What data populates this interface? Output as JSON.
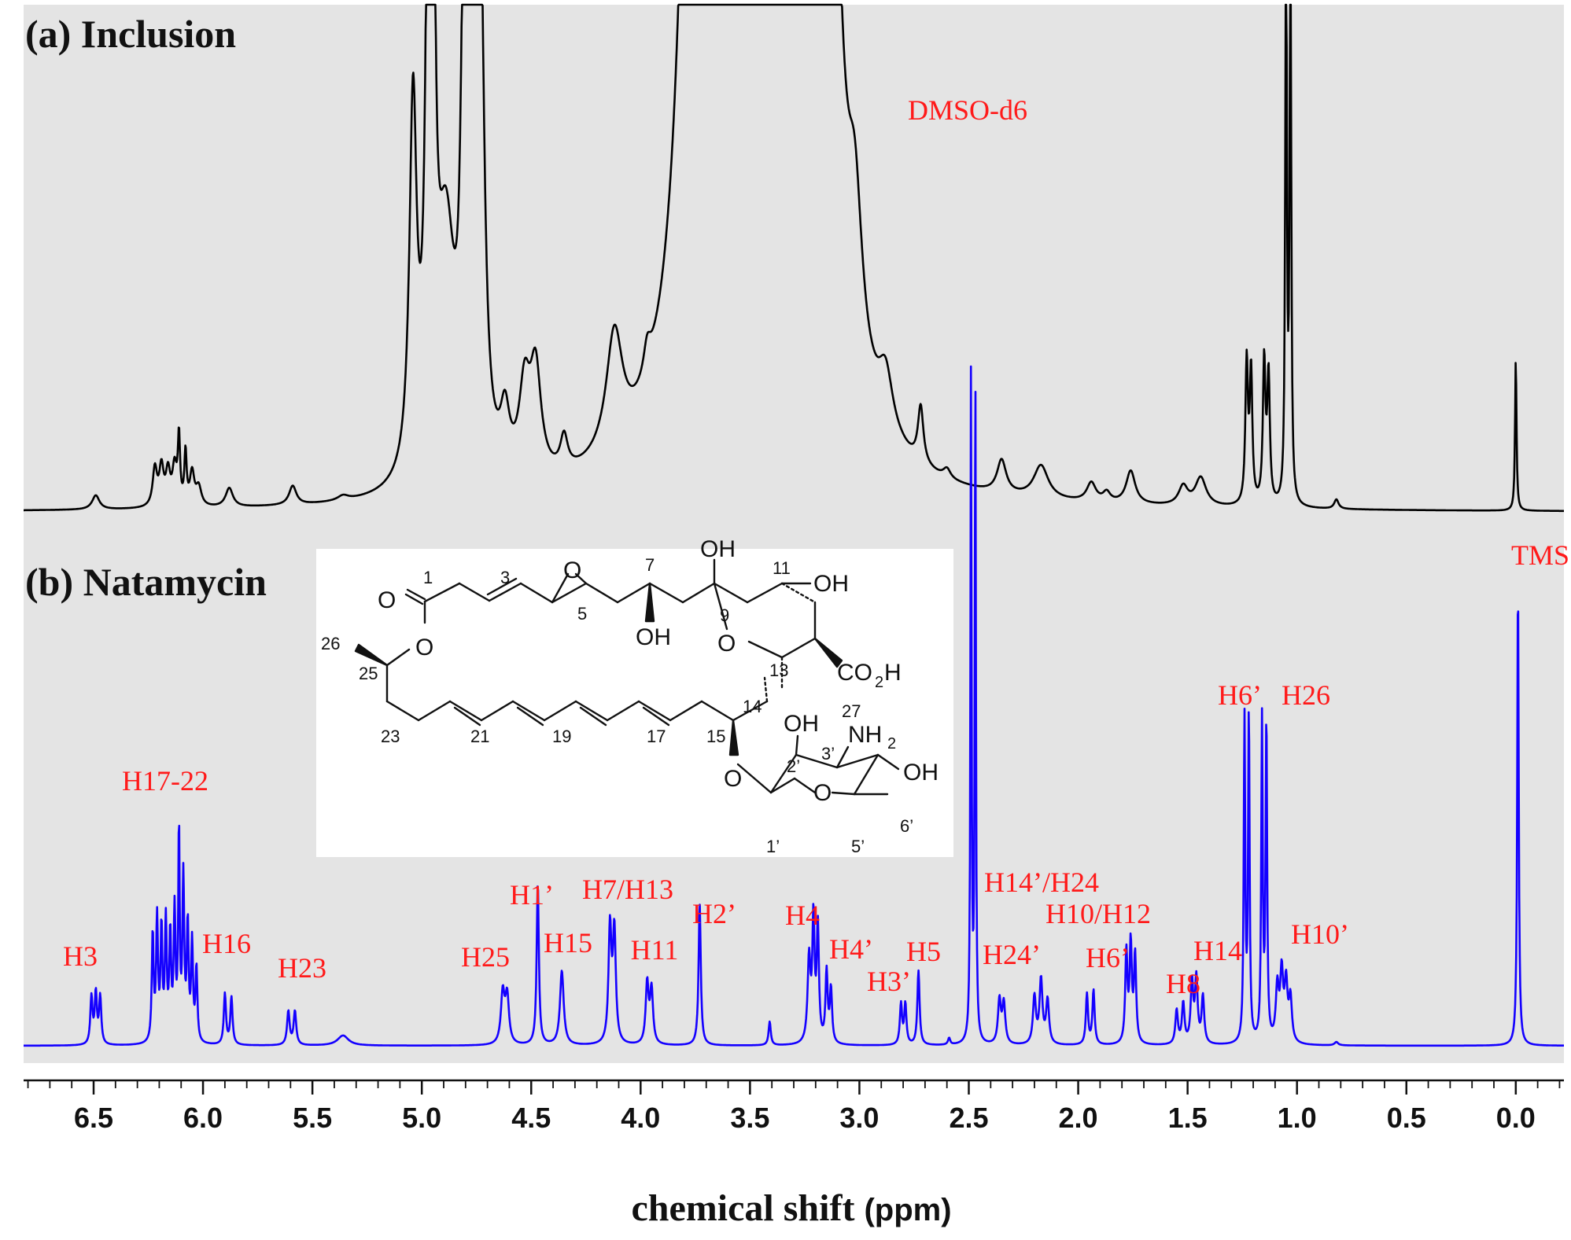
{
  "chart_data": {
    "type": "line",
    "xlabel": "chemical shift",
    "xlabel_unit": "(ppm)",
    "xlim": [
      6.82,
      -0.22
    ],
    "x_reversed": true,
    "xticks": [
      6.5,
      6.0,
      5.5,
      5.0,
      4.5,
      4.0,
      3.5,
      3.0,
      2.5,
      2.0,
      1.5,
      1.0,
      0.5,
      0.0
    ],
    "xtick_labels": [
      "6.5",
      "6.0",
      "5.5",
      "5.0",
      "4.5",
      "4.0",
      "3.5",
      "3.0",
      "2.5",
      "2.0",
      "1.5",
      "1.0",
      "0.5",
      "0.0"
    ],
    "background": "#e4e4e4",
    "series": [
      {
        "name": "(a) Inclusion",
        "color": "#000000",
        "baseline": 0,
        "peaks": [
          {
            "x": 6.49,
            "h": 0.03,
            "w": 0.02
          },
          {
            "x": 6.22,
            "h": 0.08,
            "w": 0.012
          },
          {
            "x": 6.19,
            "h": 0.08,
            "w": 0.012
          },
          {
            "x": 6.16,
            "h": 0.07,
            "w": 0.012
          },
          {
            "x": 6.13,
            "h": 0.08,
            "w": 0.012
          },
          {
            "x": 6.11,
            "h": 0.14,
            "w": 0.006
          },
          {
            "x": 6.08,
            "h": 0.11,
            "w": 0.006
          },
          {
            "x": 6.05,
            "h": 0.07,
            "w": 0.012
          },
          {
            "x": 6.02,
            "h": 0.04,
            "w": 0.015
          },
          {
            "x": 5.88,
            "h": 0.04,
            "w": 0.02
          },
          {
            "x": 5.59,
            "h": 0.04,
            "w": 0.02
          },
          {
            "x": 5.36,
            "h": 0.01,
            "w": 0.03
          },
          {
            "x": 5.04,
            "h": 0.78,
            "w": 0.02
          },
          {
            "x": 4.95,
            "h": 1.15,
            "w": 0.012
          },
          {
            "x": 4.97,
            "h": 1.1,
            "w": 0.015
          },
          {
            "x": 4.89,
            "h": 0.5,
            "w": 0.05
          },
          {
            "x": 4.81,
            "h": 0.72,
            "w": 0.015
          },
          {
            "x": 4.79,
            "h": 0.62,
            "w": 0.015
          },
          {
            "x": 4.76,
            "h": 1.0,
            "w": 0.017
          },
          {
            "x": 4.73,
            "h": 0.88,
            "w": 0.02
          },
          {
            "x": 4.62,
            "h": 0.12,
            "w": 0.025
          },
          {
            "x": 4.53,
            "h": 0.18,
            "w": 0.03
          },
          {
            "x": 4.48,
            "h": 0.22,
            "w": 0.03
          },
          {
            "x": 4.35,
            "h": 0.07,
            "w": 0.02
          },
          {
            "x": 4.12,
            "h": 0.25,
            "w": 0.045
          },
          {
            "x": 3.97,
            "h": 0.06,
            "w": 0.02
          },
          {
            "x": 3.74,
            "h": 2.5,
            "w": 0.06
          },
          {
            "x": 3.57,
            "h": 1.6,
            "w": 0.1
          },
          {
            "x": 3.32,
            "h": 2.5,
            "w": 0.07
          },
          {
            "x": 3.16,
            "h": 2.5,
            "w": 0.05
          },
          {
            "x": 3.02,
            "h": 0.3,
            "w": 0.04
          },
          {
            "x": 2.88,
            "h": 0.12,
            "w": 0.04
          },
          {
            "x": 2.72,
            "h": 0.12,
            "w": 0.015
          },
          {
            "x": 2.6,
            "h": 0.02,
            "w": 0.02
          },
          {
            "x": 2.35,
            "h": 0.07,
            "w": 0.025
          },
          {
            "x": 2.17,
            "h": 0.07,
            "w": 0.04
          },
          {
            "x": 1.94,
            "h": 0.04,
            "w": 0.025
          },
          {
            "x": 1.87,
            "h": 0.02,
            "w": 0.02
          },
          {
            "x": 1.76,
            "h": 0.07,
            "w": 0.025
          },
          {
            "x": 1.52,
            "h": 0.04,
            "w": 0.025
          },
          {
            "x": 1.44,
            "h": 0.06,
            "w": 0.03
          },
          {
            "x": 1.23,
            "h": 0.3,
            "w": 0.007
          },
          {
            "x": 1.21,
            "h": 0.28,
            "w": 0.007
          },
          {
            "x": 1.15,
            "h": 0.3,
            "w": 0.007
          },
          {
            "x": 1.13,
            "h": 0.27,
            "w": 0.007
          },
          {
            "x": 1.05,
            "h": 1.35,
            "w": 0.004
          },
          {
            "x": 1.03,
            "h": 1.35,
            "w": 0.004
          },
          {
            "x": 0.82,
            "h": 0.02,
            "w": 0.012
          },
          {
            "x": 0.0,
            "h": 0.32,
            "w": 0.004
          }
        ],
        "dip": {
          "x": 3.27,
          "depth": 0.55
        }
      },
      {
        "name": "(b) Natamycin",
        "color": "#1400ff",
        "baseline": 0,
        "peaks": [
          {
            "x": 6.51,
            "h": 0.14,
            "w": 0.006
          },
          {
            "x": 6.49,
            "h": 0.15,
            "w": 0.006
          },
          {
            "x": 6.47,
            "h": 0.14,
            "w": 0.006
          },
          {
            "x": 6.23,
            "h": 0.32,
            "w": 0.005
          },
          {
            "x": 6.21,
            "h": 0.36,
            "w": 0.005
          },
          {
            "x": 6.19,
            "h": 0.33,
            "w": 0.005
          },
          {
            "x": 6.17,
            "h": 0.35,
            "w": 0.005
          },
          {
            "x": 6.15,
            "h": 0.31,
            "w": 0.005
          },
          {
            "x": 6.13,
            "h": 0.38,
            "w": 0.005
          },
          {
            "x": 6.11,
            "h": 0.62,
            "w": 0.004
          },
          {
            "x": 6.09,
            "h": 0.48,
            "w": 0.005
          },
          {
            "x": 6.07,
            "h": 0.34,
            "w": 0.005
          },
          {
            "x": 6.05,
            "h": 0.29,
            "w": 0.005
          },
          {
            "x": 6.03,
            "h": 0.22,
            "w": 0.005
          },
          {
            "x": 5.9,
            "h": 0.15,
            "w": 0.006
          },
          {
            "x": 5.87,
            "h": 0.14,
            "w": 0.006
          },
          {
            "x": 5.61,
            "h": 0.1,
            "w": 0.007
          },
          {
            "x": 5.58,
            "h": 0.1,
            "w": 0.007
          },
          {
            "x": 5.36,
            "h": 0.03,
            "w": 0.03
          },
          {
            "x": 4.63,
            "h": 0.15,
            "w": 0.01
          },
          {
            "x": 4.61,
            "h": 0.14,
            "w": 0.01
          },
          {
            "x": 4.47,
            "h": 0.48,
            "w": 0.006
          },
          {
            "x": 4.36,
            "h": 0.22,
            "w": 0.01
          },
          {
            "x": 4.14,
            "h": 0.34,
            "w": 0.008
          },
          {
            "x": 4.12,
            "h": 0.33,
            "w": 0.008
          },
          {
            "x": 3.97,
            "h": 0.18,
            "w": 0.008
          },
          {
            "x": 3.95,
            "h": 0.16,
            "w": 0.008
          },
          {
            "x": 3.73,
            "h": 0.42,
            "w": 0.006
          },
          {
            "x": 3.41,
            "h": 0.07,
            "w": 0.006
          },
          {
            "x": 3.23,
            "h": 0.25,
            "w": 0.008
          },
          {
            "x": 3.21,
            "h": 0.36,
            "w": 0.006
          },
          {
            "x": 3.19,
            "h": 0.34,
            "w": 0.006
          },
          {
            "x": 3.15,
            "h": 0.21,
            "w": 0.006
          },
          {
            "x": 3.13,
            "h": 0.16,
            "w": 0.006
          },
          {
            "x": 2.81,
            "h": 0.12,
            "w": 0.006
          },
          {
            "x": 2.79,
            "h": 0.12,
            "w": 0.006
          },
          {
            "x": 2.73,
            "h": 0.22,
            "w": 0.006
          },
          {
            "x": 2.59,
            "h": 0.02,
            "w": 0.006
          },
          {
            "x": 2.49,
            "h": 2.0,
            "w": 0.003
          },
          {
            "x": 2.47,
            "h": 2.0,
            "w": 0.003
          },
          {
            "x": 2.36,
            "h": 0.13,
            "w": 0.008
          },
          {
            "x": 2.34,
            "h": 0.12,
            "w": 0.008
          },
          {
            "x": 2.2,
            "h": 0.14,
            "w": 0.008
          },
          {
            "x": 2.17,
            "h": 0.19,
            "w": 0.008
          },
          {
            "x": 2.14,
            "h": 0.13,
            "w": 0.008
          },
          {
            "x": 1.96,
            "h": 0.15,
            "w": 0.006
          },
          {
            "x": 1.93,
            "h": 0.16,
            "w": 0.006
          },
          {
            "x": 1.78,
            "h": 0.27,
            "w": 0.006
          },
          {
            "x": 1.76,
            "h": 0.29,
            "w": 0.006
          },
          {
            "x": 1.74,
            "h": 0.26,
            "w": 0.006
          },
          {
            "x": 1.55,
            "h": 0.1,
            "w": 0.007
          },
          {
            "x": 1.52,
            "h": 0.12,
            "w": 0.007
          },
          {
            "x": 1.48,
            "h": 0.18,
            "w": 0.007
          },
          {
            "x": 1.46,
            "h": 0.19,
            "w": 0.007
          },
          {
            "x": 1.43,
            "h": 0.14,
            "w": 0.007
          },
          {
            "x": 1.24,
            "h": 0.96,
            "w": 0.004
          },
          {
            "x": 1.22,
            "h": 0.98,
            "w": 0.004
          },
          {
            "x": 1.16,
            "h": 0.95,
            "w": 0.004
          },
          {
            "x": 1.14,
            "h": 0.96,
            "w": 0.004
          },
          {
            "x": 1.09,
            "h": 0.16,
            "w": 0.008
          },
          {
            "x": 1.07,
            "h": 0.2,
            "w": 0.008
          },
          {
            "x": 1.05,
            "h": 0.17,
            "w": 0.008
          },
          {
            "x": 1.03,
            "h": 0.13,
            "w": 0.008
          },
          {
            "x": 0.82,
            "h": 0.01,
            "w": 0.01
          },
          {
            "x": -0.01,
            "h": 1.39,
            "w": 0.004
          }
        ]
      }
    ],
    "annotations": [
      {
        "text": "DMSO-d6",
        "x": 2.47
      },
      {
        "text": "TMS",
        "x": 0.0
      },
      {
        "text": "H3",
        "x": 6.49
      },
      {
        "text": "H17-22",
        "x": 6.12
      },
      {
        "text": "H16",
        "x": 5.88
      },
      {
        "text": "H23",
        "x": 5.59
      },
      {
        "text": "H25",
        "x": 4.62
      },
      {
        "text": "H1’",
        "x": 4.47
      },
      {
        "text": "H15",
        "x": 4.36
      },
      {
        "text": "H7/H13",
        "x": 4.13
      },
      {
        "text": "H11",
        "x": 3.96
      },
      {
        "text": "H2’",
        "x": 3.73
      },
      {
        "text": "H4",
        "x": 3.21
      },
      {
        "text": "H4’",
        "x": 3.14
      },
      {
        "text": "H3’",
        "x": 2.8
      },
      {
        "text": "H5",
        "x": 2.73
      },
      {
        "text": "H14’/H24",
        "x": 2.25
      },
      {
        "text": "H24’",
        "x": 2.27
      },
      {
        "text": "H10/H12",
        "x": 1.85
      },
      {
        "text": "H6’",
        "x": 1.95
      },
      {
        "text": "H8",
        "x": 1.54
      },
      {
        "text": "H14",
        "x": 1.45
      },
      {
        "text": "H6’",
        "x": 1.23
      },
      {
        "text": "H26",
        "x": 1.14
      },
      {
        "text": "H10’",
        "x": 1.07
      }
    ]
  },
  "structure": {
    "atom_labels": [
      "O",
      "O",
      "O",
      "OH",
      "OH",
      "OH",
      "O",
      "CO",
      "2",
      "H",
      "OH",
      "NH",
      "2",
      "O",
      "O",
      "OH"
    ],
    "locants": [
      "1",
      "3",
      "5",
      "7",
      "9",
      "11",
      "13",
      "14",
      "15",
      "17",
      "19",
      "21",
      "23",
      "25",
      "26",
      "27",
      "2’",
      "3’",
      "1’",
      "5’",
      "6’"
    ]
  }
}
